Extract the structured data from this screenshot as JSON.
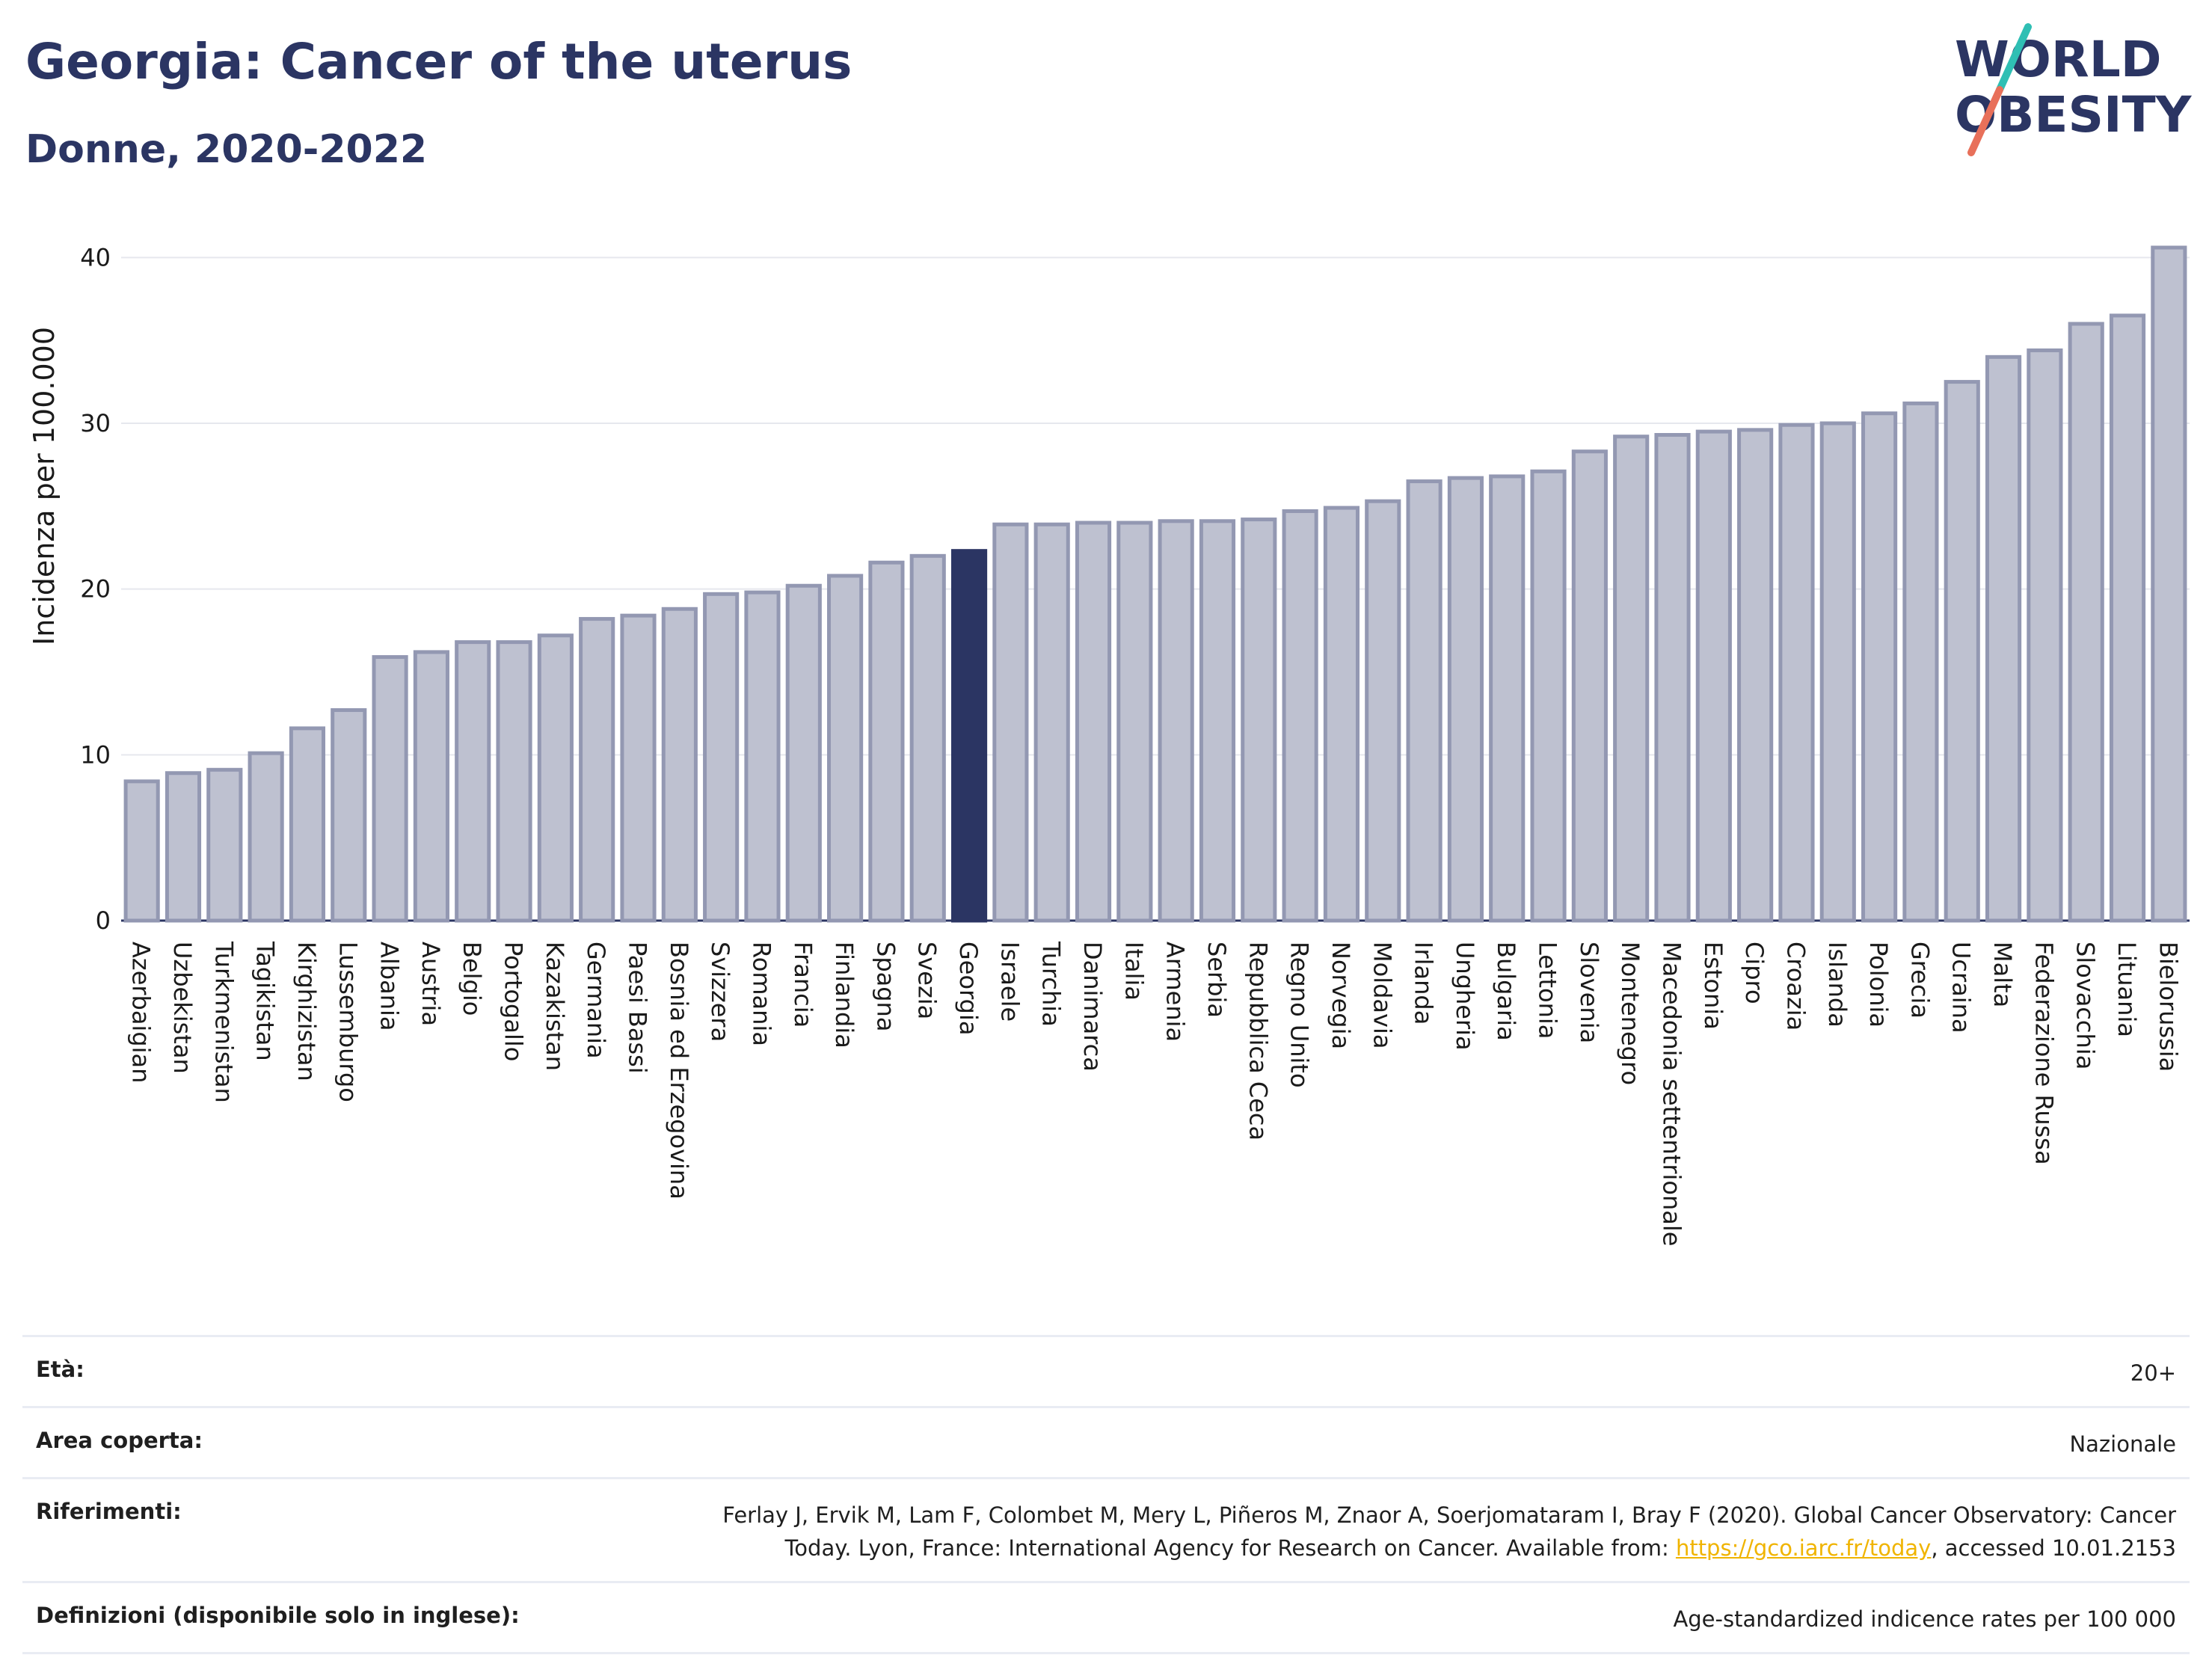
{
  "header": {
    "title": "Georgia: Cancer of the uterus",
    "subtitle": "Donne, 2020-2022"
  },
  "logo": {
    "line1": "WORLD",
    "line2": "OBESITY"
  },
  "colors": {
    "highlight": "#2b3563",
    "bar": "#bec1d0",
    "bar_edge": "#9398b2",
    "grid": "#e6e8ee"
  },
  "chart_data": {
    "type": "bar",
    "ylabel": "Incidenza per 100.000",
    "ylim": [
      0,
      42
    ],
    "yticks": [
      0,
      10,
      20,
      30,
      40
    ],
    "highlight": "Georgia",
    "categories": [
      "Azerbaigian",
      "Uzbekistan",
      "Turkmenistan",
      "Tagikistan",
      "Kirghizistan",
      "Lussemburgo",
      "Albania",
      "Austria",
      "Belgio",
      "Portogallo",
      "Kazakistan",
      "Germania",
      "Paesi Bassi",
      "Bosnia ed Erzegovina",
      "Svizzera",
      "Romania",
      "Francia",
      "Finlandia",
      "Spagna",
      "Svezia",
      "Georgia",
      "Israele",
      "Turchia",
      "Danimarca",
      "Italia",
      "Armenia",
      "Serbia",
      "Repubblica Ceca",
      "Regno Unito",
      "Norvegia",
      "Moldavia",
      "Irlanda",
      "Ungheria",
      "Bulgaria",
      "Lettonia",
      "Slovenia",
      "Montenegro",
      "Macedonia settentrionale",
      "Estonia",
      "Cipro",
      "Croazia",
      "Islanda",
      "Polonia",
      "Grecia",
      "Ucraina",
      "Malta",
      "Federazione Russa",
      "Slovacchia",
      "Lituania",
      "Bielorussia"
    ],
    "values": [
      8.4,
      8.9,
      9.1,
      10.1,
      11.6,
      12.7,
      15.9,
      16.2,
      16.8,
      16.8,
      17.2,
      18.2,
      18.4,
      18.8,
      19.7,
      19.8,
      20.2,
      20.8,
      21.6,
      22.0,
      22.3,
      23.9,
      23.9,
      24.0,
      24.0,
      24.1,
      24.1,
      24.2,
      24.7,
      24.9,
      25.3,
      26.5,
      26.7,
      26.8,
      27.1,
      28.3,
      29.2,
      29.3,
      29.5,
      29.6,
      29.9,
      30.0,
      30.6,
      31.2,
      32.5,
      34.0,
      34.4,
      36.0,
      36.5,
      40.6
    ]
  },
  "info": [
    {
      "label": "Età:",
      "value": "20+"
    },
    {
      "label": "Area coperta:",
      "value": "Nazionale"
    },
    {
      "label": "Riferimenti:",
      "value_line1": "Ferlay J, Ervik M, Lam F, Colombet M, Mery L, Piñeros M, Znaor A, Soerjomataram I, Bray F (2020). Global Cancer Observatory: Cancer",
      "value_line2_pre": "Today. Lyon, France: International Agency for Research on Cancer. Available from: ",
      "link": "https://gco.iarc.fr/today",
      "value_line2_post": ", accessed 10.01.2153"
    },
    {
      "label": "Definizioni (disponibile solo in inglese):",
      "value": "Age-standardized indicence rates per 100 000"
    }
  ]
}
